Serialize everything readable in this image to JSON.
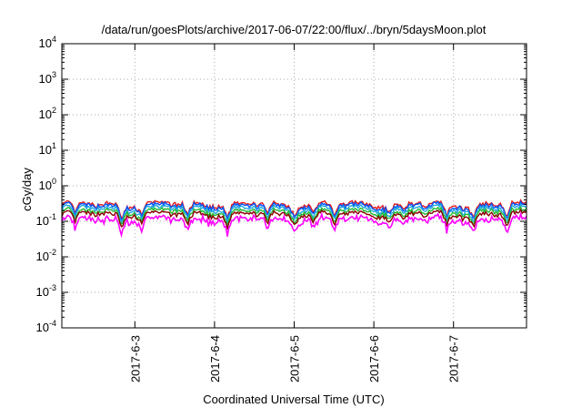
{
  "chart_data": {
    "type": "line",
    "title": "/data/run/goesPlots/archive/2017-06-07/22:00/flux/../bryn/5daysMoon.plot",
    "xlabel": "Coordinated Universal Time (UTC)",
    "ylabel": "cGy/day",
    "yscale": "log",
    "ylim": [
      0.0001,
      10000
    ],
    "y_ticks": [
      {
        "value": 0.0001,
        "base": "10",
        "exp": "-4"
      },
      {
        "value": 0.001,
        "base": "10",
        "exp": "-3"
      },
      {
        "value": 0.01,
        "base": "10",
        "exp": "-2"
      },
      {
        "value": 0.1,
        "base": "10",
        "exp": "-1"
      },
      {
        "value": 1,
        "base": "10",
        "exp": "0"
      },
      {
        "value": 10,
        "base": "10",
        "exp": "1"
      },
      {
        "value": 100,
        "base": "10",
        "exp": "2"
      },
      {
        "value": 1000,
        "base": "10",
        "exp": "3"
      },
      {
        "value": 10000,
        "base": "10",
        "exp": "4"
      }
    ],
    "xlim": [
      "2017-06-02T02:00",
      "2017-06-07T22:00"
    ],
    "x_ticks": [
      "2017-6-3",
      "2017-6-4",
      "2017-6-5",
      "2017-6-6",
      "2017-6-7"
    ],
    "grid": true,
    "series": [
      {
        "color": "#e41a1c",
        "level": 0.3
      },
      {
        "color": "#0055ff",
        "level": 0.27
      },
      {
        "color": "#22aadd",
        "level": 0.23
      },
      {
        "color": "#22bb33",
        "level": 0.19
      },
      {
        "color": "#8b0000",
        "level": 0.16
      },
      {
        "color": "#ff00ff",
        "level": 0.13
      }
    ],
    "dips": [
      {
        "x": "2017-06-02T06:00",
        "depth": 0.55
      },
      {
        "x": "2017-06-02T20:00",
        "depth": 0.6
      },
      {
        "x": "2017-06-03T02:00",
        "depth": 0.4
      },
      {
        "x": "2017-06-03T16:00",
        "depth": 0.55
      },
      {
        "x": "2017-06-04T04:00",
        "depth": 0.6
      },
      {
        "x": "2017-06-04T16:00",
        "depth": 0.5
      },
      {
        "x": "2017-06-05T00:00",
        "depth": 0.35
      },
      {
        "x": "2017-06-05T06:00",
        "depth": 0.45
      },
      {
        "x": "2017-06-05T12:00",
        "depth": 0.55
      },
      {
        "x": "2017-06-06T05:00",
        "depth": 0.35
      },
      {
        "x": "2017-06-06T09:00",
        "depth": 0.45
      },
      {
        "x": "2017-06-06T22:00",
        "depth": 0.6
      },
      {
        "x": "2017-06-07T06:00",
        "depth": 0.55
      },
      {
        "x": "2017-06-07T16:00",
        "depth": 0.6
      }
    ]
  }
}
